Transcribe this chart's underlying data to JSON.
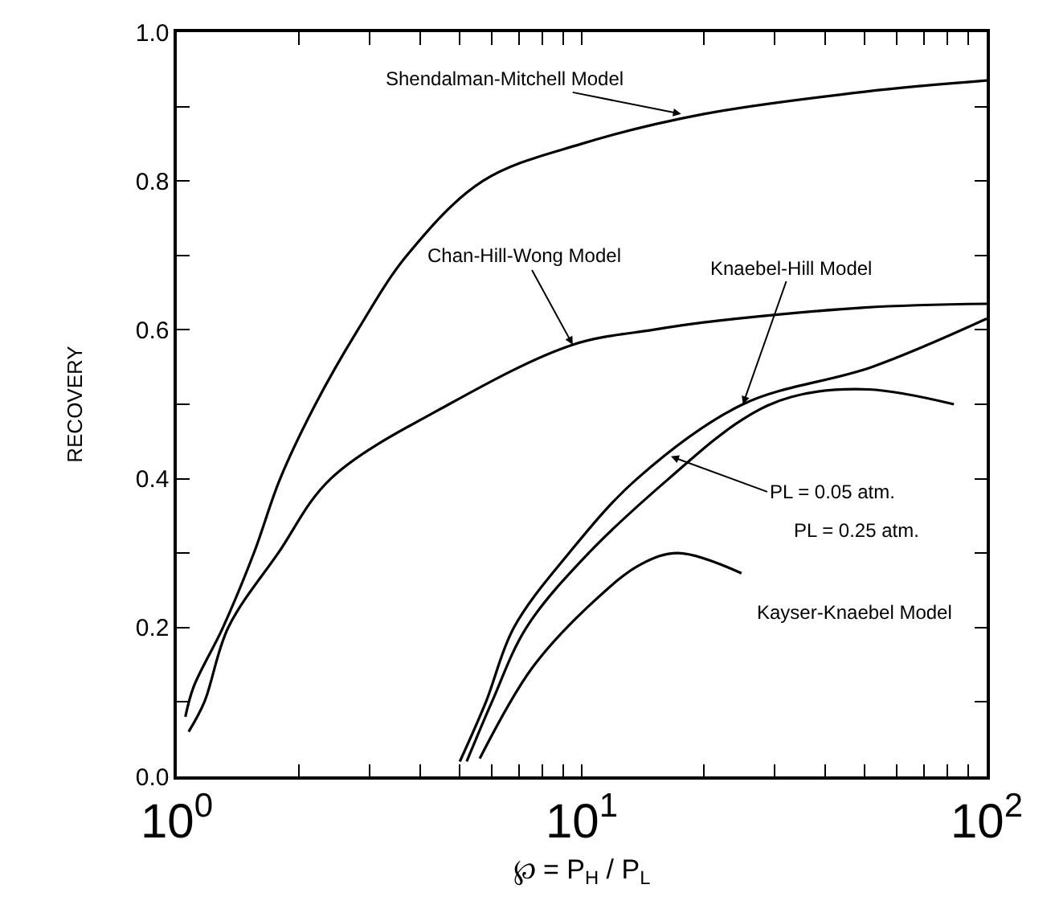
{
  "chart_data": {
    "type": "line",
    "xlabel": "℘ = P$_{H}$ / P$_{L}$",
    "ylabel": "RECOVERY",
    "log": "x",
    "marker": "none",
    "line_style": "solid",
    "xlim": [
      1,
      100
    ],
    "ylim": [
      0,
      1.0
    ],
    "xticks": [
      {
        "value": 1,
        "label": "10$^{0}$"
      },
      {
        "value": 2,
        "label": null
      },
      {
        "value": 3,
        "label": null
      },
      {
        "value": 4,
        "label": null
      },
      {
        "value": 5,
        "label": null
      },
      {
        "value": 6,
        "label": null
      },
      {
        "value": 7,
        "label": null
      },
      {
        "value": 8,
        "label": null
      },
      {
        "value": 9,
        "label": null
      },
      {
        "value": 10,
        "label": "10$^{1}$"
      },
      {
        "value": 20,
        "label": null
      },
      {
        "value": 30,
        "label": null
      },
      {
        "value": 40,
        "label": null
      },
      {
        "value": 50,
        "label": null
      },
      {
        "value": 60,
        "label": null
      },
      {
        "value": 70,
        "label": null
      },
      {
        "value": 80,
        "label": null
      },
      {
        "value": 90,
        "label": null
      },
      {
        "value": 100,
        "label": "10$^{2}$"
      }
    ],
    "yticks": [
      {
        "value": 0,
        "label": "0.0"
      },
      {
        "value": 0.1,
        "label": null
      },
      {
        "value": 0.2,
        "label": "0.2"
      },
      {
        "value": 0.3,
        "label": null
      },
      {
        "value": 0.4,
        "label": "0.4"
      },
      {
        "value": 0.5,
        "label": null
      },
      {
        "value": 0.6,
        "label": "0.6"
      },
      {
        "value": 0.7,
        "label": null
      },
      {
        "value": 0.8,
        "label": "0.8"
      },
      {
        "value": 0.9,
        "label": null
      },
      {
        "value": 1.0,
        "label": "1.0"
      }
    ],
    "series": [
      {
        "color": "#000000",
        "x": [
          1.05,
          1.1,
          1.3,
          1.55,
          1.8,
          2.2,
          2.8,
          3.7,
          5.7,
          10,
          20,
          50,
          100
        ],
        "values": [
          0.08,
          0.12,
          0.2,
          0.3,
          0.4,
          0.5,
          0.6,
          0.7,
          0.8,
          0.85,
          0.89,
          0.92,
          0.935
        ]
      },
      {
        "color": "#000000",
        "x": [
          1.07,
          1.17,
          1.34,
          1.78,
          2.4,
          4.7,
          9.5,
          15,
          20,
          50,
          100
        ],
        "values": [
          0.06,
          0.1,
          0.2,
          0.3,
          0.4,
          0.5,
          0.58,
          0.6,
          0.61,
          0.63,
          0.635
        ]
      },
      {
        "color": "#000000",
        "x": [
          5.0,
          5.8,
          6.8,
          9.3,
          13.7,
          25,
          52,
          100
        ],
        "values": [
          0.02,
          0.1,
          0.2,
          0.3,
          0.4,
          0.5,
          0.55,
          0.615
        ]
      },
      {
        "color": "#000000",
        "x": [
          5.2,
          6.0,
          7.3,
          10.4,
          16.4,
          25,
          33,
          51,
          83
        ],
        "values": [
          0.02,
          0.1,
          0.2,
          0.3,
          0.4,
          0.48,
          0.51,
          0.52,
          0.5
        ]
      },
      {
        "color": "#000000",
        "x": [
          5.6,
          7.55,
          10.7,
          14,
          17.3,
          24.8
        ],
        "values": [
          0.024,
          0.146,
          0.235,
          0.285,
          0.3,
          0.273
        ]
      }
    ],
    "annotations": [
      {
        "text": "Shendalman-Mitchell Model",
        "x": 17.6,
        "y": 0.89
      },
      {
        "text": "Chan-Hill-Wong Model",
        "x": 9.5,
        "y": 0.58
      },
      {
        "text": "Knaebel-Hill Model",
        "x": 25,
        "y": 0.5
      },
      {
        "text": "PL = 0.05 atm.",
        "x": 16.6,
        "y": 0.43
      },
      "PL = 0.25 atm.",
      "Kayser-Knaebel Model"
    ]
  }
}
